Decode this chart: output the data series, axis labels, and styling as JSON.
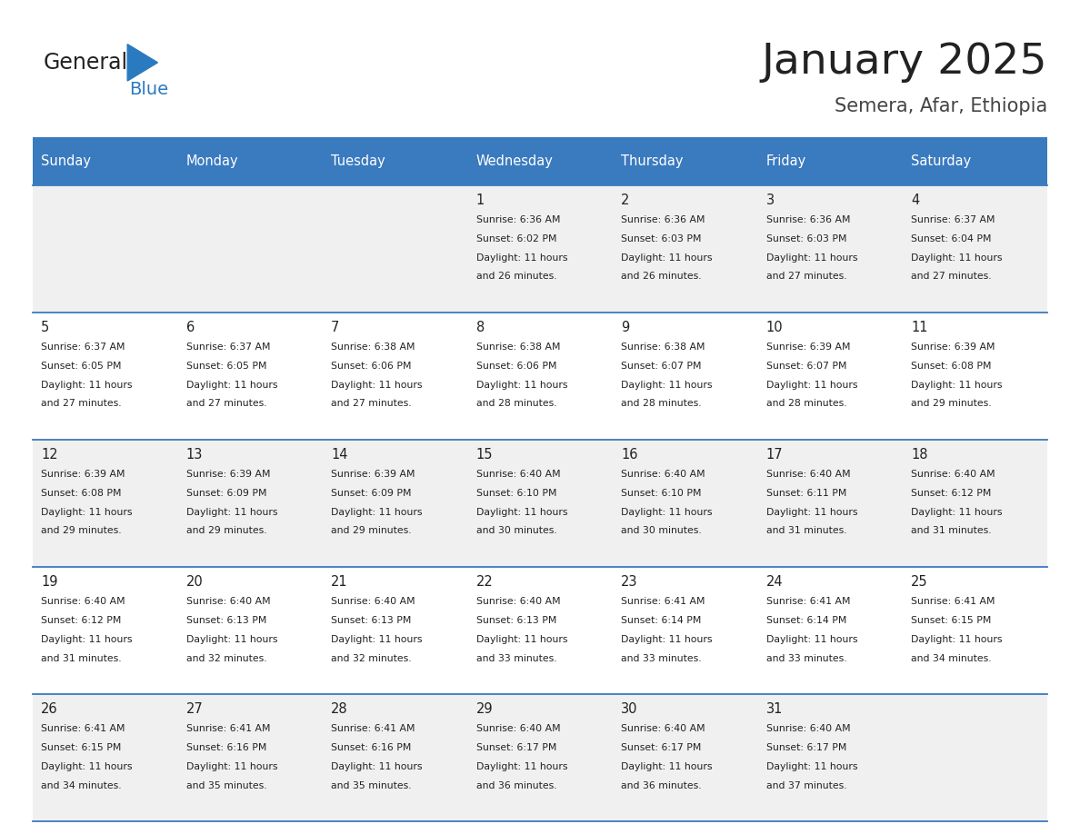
{
  "title": "January 2025",
  "subtitle": "Semera, Afar, Ethiopia",
  "days_of_week": [
    "Sunday",
    "Monday",
    "Tuesday",
    "Wednesday",
    "Thursday",
    "Friday",
    "Saturday"
  ],
  "header_bg": "#3a7abf",
  "header_text": "#ffffff",
  "cell_bg_light": "#f0f0f0",
  "cell_bg_white": "#ffffff",
  "divider_color": "#3a7abf",
  "text_color": "#222222",
  "title_color": "#222222",
  "subtitle_color": "#444444",
  "logo_general_color": "#222222",
  "logo_blue_color": "#2a7abf",
  "calendar_data": [
    [
      null,
      null,
      null,
      {
        "day": 1,
        "sunrise": "6:36 AM",
        "sunset": "6:02 PM",
        "daylight": "11 hours and 26 minutes."
      },
      {
        "day": 2,
        "sunrise": "6:36 AM",
        "sunset": "6:03 PM",
        "daylight": "11 hours and 26 minutes."
      },
      {
        "day": 3,
        "sunrise": "6:36 AM",
        "sunset": "6:03 PM",
        "daylight": "11 hours and 27 minutes."
      },
      {
        "day": 4,
        "sunrise": "6:37 AM",
        "sunset": "6:04 PM",
        "daylight": "11 hours and 27 minutes."
      }
    ],
    [
      {
        "day": 5,
        "sunrise": "6:37 AM",
        "sunset": "6:05 PM",
        "daylight": "11 hours and 27 minutes."
      },
      {
        "day": 6,
        "sunrise": "6:37 AM",
        "sunset": "6:05 PM",
        "daylight": "11 hours and 27 minutes."
      },
      {
        "day": 7,
        "sunrise": "6:38 AM",
        "sunset": "6:06 PM",
        "daylight": "11 hours and 27 minutes."
      },
      {
        "day": 8,
        "sunrise": "6:38 AM",
        "sunset": "6:06 PM",
        "daylight": "11 hours and 28 minutes."
      },
      {
        "day": 9,
        "sunrise": "6:38 AM",
        "sunset": "6:07 PM",
        "daylight": "11 hours and 28 minutes."
      },
      {
        "day": 10,
        "sunrise": "6:39 AM",
        "sunset": "6:07 PM",
        "daylight": "11 hours and 28 minutes."
      },
      {
        "day": 11,
        "sunrise": "6:39 AM",
        "sunset": "6:08 PM",
        "daylight": "11 hours and 29 minutes."
      }
    ],
    [
      {
        "day": 12,
        "sunrise": "6:39 AM",
        "sunset": "6:08 PM",
        "daylight": "11 hours and 29 minutes."
      },
      {
        "day": 13,
        "sunrise": "6:39 AM",
        "sunset": "6:09 PM",
        "daylight": "11 hours and 29 minutes."
      },
      {
        "day": 14,
        "sunrise": "6:39 AM",
        "sunset": "6:09 PM",
        "daylight": "11 hours and 29 minutes."
      },
      {
        "day": 15,
        "sunrise": "6:40 AM",
        "sunset": "6:10 PM",
        "daylight": "11 hours and 30 minutes."
      },
      {
        "day": 16,
        "sunrise": "6:40 AM",
        "sunset": "6:10 PM",
        "daylight": "11 hours and 30 minutes."
      },
      {
        "day": 17,
        "sunrise": "6:40 AM",
        "sunset": "6:11 PM",
        "daylight": "11 hours and 31 minutes."
      },
      {
        "day": 18,
        "sunrise": "6:40 AM",
        "sunset": "6:12 PM",
        "daylight": "11 hours and 31 minutes."
      }
    ],
    [
      {
        "day": 19,
        "sunrise": "6:40 AM",
        "sunset": "6:12 PM",
        "daylight": "11 hours and 31 minutes."
      },
      {
        "day": 20,
        "sunrise": "6:40 AM",
        "sunset": "6:13 PM",
        "daylight": "11 hours and 32 minutes."
      },
      {
        "day": 21,
        "sunrise": "6:40 AM",
        "sunset": "6:13 PM",
        "daylight": "11 hours and 32 minutes."
      },
      {
        "day": 22,
        "sunrise": "6:40 AM",
        "sunset": "6:13 PM",
        "daylight": "11 hours and 33 minutes."
      },
      {
        "day": 23,
        "sunrise": "6:41 AM",
        "sunset": "6:14 PM",
        "daylight": "11 hours and 33 minutes."
      },
      {
        "day": 24,
        "sunrise": "6:41 AM",
        "sunset": "6:14 PM",
        "daylight": "11 hours and 33 minutes."
      },
      {
        "day": 25,
        "sunrise": "6:41 AM",
        "sunset": "6:15 PM",
        "daylight": "11 hours and 34 minutes."
      }
    ],
    [
      {
        "day": 26,
        "sunrise": "6:41 AM",
        "sunset": "6:15 PM",
        "daylight": "11 hours and 34 minutes."
      },
      {
        "day": 27,
        "sunrise": "6:41 AM",
        "sunset": "6:16 PM",
        "daylight": "11 hours and 35 minutes."
      },
      {
        "day": 28,
        "sunrise": "6:41 AM",
        "sunset": "6:16 PM",
        "daylight": "11 hours and 35 minutes."
      },
      {
        "day": 29,
        "sunrise": "6:40 AM",
        "sunset": "6:17 PM",
        "daylight": "11 hours and 36 minutes."
      },
      {
        "day": 30,
        "sunrise": "6:40 AM",
        "sunset": "6:17 PM",
        "daylight": "11 hours and 36 minutes."
      },
      {
        "day": 31,
        "sunrise": "6:40 AM",
        "sunset": "6:17 PM",
        "daylight": "11 hours and 37 minutes."
      },
      null
    ]
  ]
}
